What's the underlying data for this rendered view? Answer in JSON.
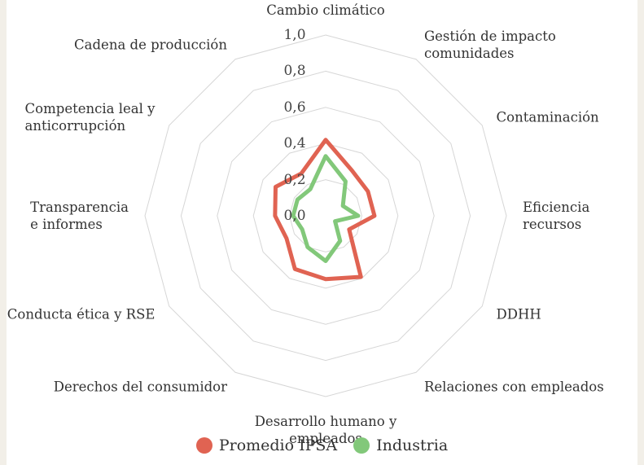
{
  "chart_data": {
    "type": "radar",
    "categories": [
      "Cambio climático",
      "Gestión de impacto\ncomunidades",
      "Contaminación",
      "Eficiencia recursos",
      "DDHH",
      "Relaciones con empleados",
      "Desarrollo humano y\nempleados",
      "Derechos del consumidor",
      "Conducta ética y RSE",
      "Transparencia\ne informes",
      "Competencia leal y\nanticorrupción",
      "Cadena de producción"
    ],
    "series": [
      {
        "name": "Promedio IPSA",
        "color": "#e06352",
        "values": [
          0.42,
          0.29,
          0.27,
          0.27,
          0.15,
          0.39,
          0.35,
          0.34,
          0.25,
          0.28,
          0.32,
          0.27
        ]
      },
      {
        "name": "Industria",
        "color": "#82c87a",
        "values": [
          0.33,
          0.22,
          0.11,
          0.18,
          0.06,
          0.16,
          0.25,
          0.2,
          0.15,
          0.18,
          0.18,
          0.17
        ]
      }
    ],
    "ylim": [
      0,
      1
    ],
    "yticks": [
      {
        "value": 0,
        "label": "0,0"
      },
      {
        "value": 0.2,
        "label": "0,2"
      },
      {
        "value": 0.4,
        "label": "0,4"
      },
      {
        "value": 0.6,
        "label": "0,6"
      },
      {
        "value": 0.8,
        "label": "0,8"
      },
      {
        "value": 1,
        "label": "1,0"
      }
    ],
    "grid": true,
    "legend": "bottom"
  }
}
